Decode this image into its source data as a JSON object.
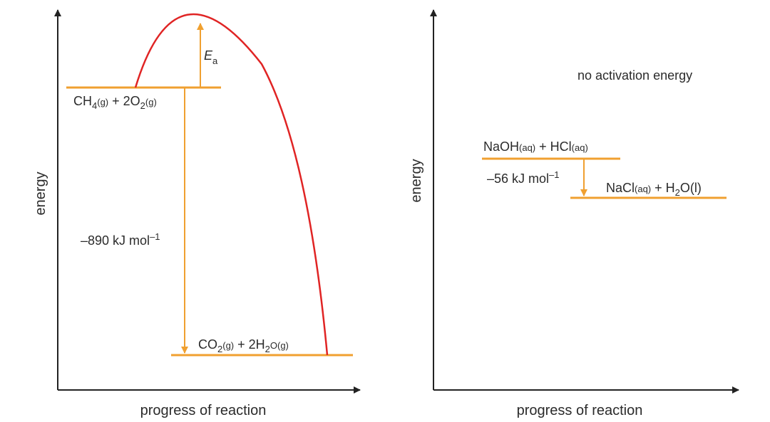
{
  "colors": {
    "axis": "#222222",
    "level": "#f0a030",
    "curve": "#e02424",
    "text": "#2b2b2b"
  },
  "left_diagram": {
    "y_axis_label": "energy",
    "x_axis_label": "progress of reaction",
    "reactants": {
      "p1": "CH",
      "s1": "4",
      "p2": "(g)",
      "p3": " + 2O",
      "s2": "2",
      "p4": "(g)"
    },
    "products": {
      "p1": "CO",
      "s1": "2",
      "p2": "(g)",
      "p3": " + 2H",
      "s2": "2",
      "p4": "O(g)"
    },
    "activation_label": {
      "main": "E",
      "sub": "a"
    },
    "enthalpy": {
      "main": "–890 kJ mol",
      "sup": "–1"
    }
  },
  "right_diagram": {
    "y_axis_label": "energy",
    "x_axis_label": "progress of reaction",
    "note": "no activation energy",
    "reactants": {
      "p1": "NaOH",
      "p2": "(aq)",
      "p3": " + HCl",
      "p4": "(aq)"
    },
    "products": {
      "p1": "NaCl",
      "p2": "(aq)",
      "p3": " + H",
      "s1": "2",
      "p4": "O(l)"
    },
    "enthalpy": {
      "main": "–56 kJ mol",
      "sup": "–1"
    }
  }
}
